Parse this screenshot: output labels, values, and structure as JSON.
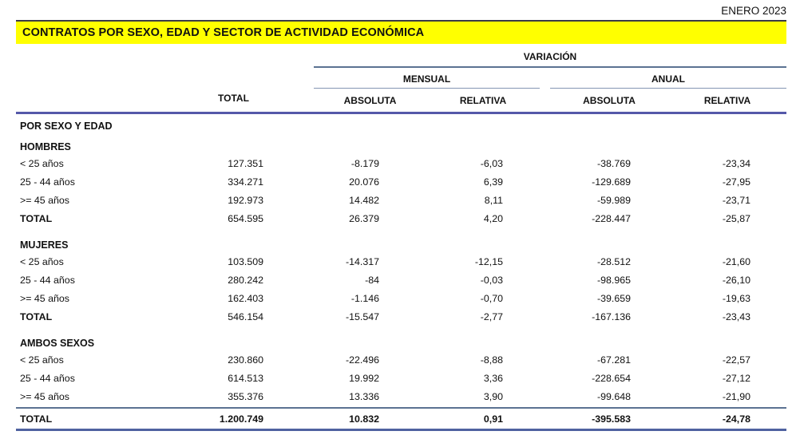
{
  "page": {
    "date_label": "ENERO 2023",
    "title": "CONTRATOS POR SEXO, EDAD Y SECTOR DE ACTIVIDAD ECONÓMICA"
  },
  "colors": {
    "title_band_bg": "#ffff00",
    "title_band_top_border": "#3a3a46",
    "rule_medium_blue": "#5b7292",
    "rule_light_blue": "#8496b3",
    "rule_thick_blue": "#5558a9",
    "rule_bottom_blue": "#4f62a0",
    "text": "#111111"
  },
  "table": {
    "headers": {
      "total": "TOTAL",
      "variacion": "VARIACIÓN",
      "mensual": "MENSUAL",
      "anual": "ANUAL",
      "absoluta": "ABSOLUTA",
      "relativa": "RELATIVA"
    },
    "section_title": "POR SEXO Y EDAD",
    "groups": [
      {
        "name": "HOMBRES",
        "rows": [
          {
            "label": "< 25 años",
            "total": "127.351",
            "mensual_absoluta": "-8.179",
            "mensual_relativa": "-6,03",
            "anual_absoluta": "-38.769",
            "anual_relativa": "-23,34"
          },
          {
            "label": "25 - 44 años",
            "total": "334.271",
            "mensual_absoluta": "20.076",
            "mensual_relativa": "6,39",
            "anual_absoluta": "-129.689",
            "anual_relativa": "-27,95"
          },
          {
            "label": ">= 45 años",
            "total": "192.973",
            "mensual_absoluta": "14.482",
            "mensual_relativa": "8,11",
            "anual_absoluta": "-59.989",
            "anual_relativa": "-23,71"
          }
        ],
        "total_row": {
          "label": "TOTAL",
          "total": "654.595",
          "mensual_absoluta": "26.379",
          "mensual_relativa": "4,20",
          "anual_absoluta": "-228.447",
          "anual_relativa": "-25,87"
        }
      },
      {
        "name": "MUJERES",
        "rows": [
          {
            "label": "< 25 años",
            "total": "103.509",
            "mensual_absoluta": "-14.317",
            "mensual_relativa": "-12,15",
            "anual_absoluta": "-28.512",
            "anual_relativa": "-21,60"
          },
          {
            "label": "25 - 44 años",
            "total": "280.242",
            "mensual_absoluta": "-84",
            "mensual_relativa": "-0,03",
            "anual_absoluta": "-98.965",
            "anual_relativa": "-26,10"
          },
          {
            "label": ">= 45 años",
            "total": "162.403",
            "mensual_absoluta": "-1.146",
            "mensual_relativa": "-0,70",
            "anual_absoluta": "-39.659",
            "anual_relativa": "-19,63"
          }
        ],
        "total_row": {
          "label": "TOTAL",
          "total": "546.154",
          "mensual_absoluta": "-15.547",
          "mensual_relativa": "-2,77",
          "anual_absoluta": "-167.136",
          "anual_relativa": "-23,43"
        }
      },
      {
        "name": "AMBOS SEXOS",
        "rows": [
          {
            "label": "< 25 años",
            "total": "230.860",
            "mensual_absoluta": "-22.496",
            "mensual_relativa": "-8,88",
            "anual_absoluta": "-67.281",
            "anual_relativa": "-22,57"
          },
          {
            "label": "25 - 44 años",
            "total": "614.513",
            "mensual_absoluta": "19.992",
            "mensual_relativa": "3,36",
            "anual_absoluta": "-228.654",
            "anual_relativa": "-27,12"
          },
          {
            "label": ">= 45 años",
            "total": "355.376",
            "mensual_absoluta": "13.336",
            "mensual_relativa": "3,90",
            "anual_absoluta": "-99.648",
            "anual_relativa": "-21,90"
          }
        ],
        "total_row": {
          "label": "TOTAL",
          "total": "1.200.749",
          "mensual_absoluta": "10.832",
          "mensual_relativa": "0,91",
          "anual_absoluta": "-395.583",
          "anual_relativa": "-24,78"
        }
      }
    ]
  }
}
